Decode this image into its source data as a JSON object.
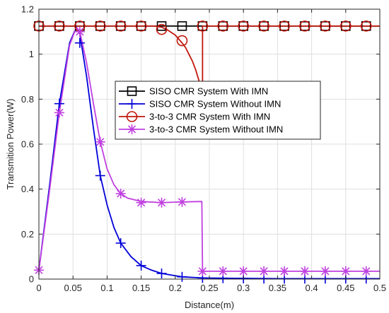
{
  "chart_data": {
    "type": "line",
    "title": "",
    "xlabel": "Distance(m)",
    "ylabel": "Transmition Power(W)",
    "xlim": [
      0,
      0.5
    ],
    "ylim": [
      0,
      1.2
    ],
    "xticks": [
      0,
      0.05,
      0.1,
      0.15,
      0.2,
      0.25,
      0.3,
      0.35,
      0.4,
      0.45,
      0.5
    ],
    "yticks": [
      0,
      0.2,
      0.4,
      0.6,
      0.8,
      1,
      1.2
    ],
    "xtick_labels": [
      "0",
      "0.05",
      "0.1",
      "0.15",
      "0.2",
      "0.25",
      "0.3",
      "0.35",
      "0.4",
      "0.45",
      "0.5"
    ],
    "ytick_labels": [
      "0",
      "0.2",
      "0.4",
      "0.6",
      "0.8",
      "1",
      "1.2"
    ],
    "grid": true,
    "legend_position": "upper-middle",
    "series": [
      {
        "name": "SISO CMR System With IMN",
        "color": "#000000",
        "marker": "square",
        "x": [
          0,
          0.25,
          0.5
        ],
        "y": [
          1.125,
          1.125,
          1.125
        ],
        "marker_x": [
          0,
          0.03,
          0.06,
          0.09,
          0.12,
          0.15,
          0.18,
          0.21,
          0.24,
          0.27,
          0.3,
          0.33,
          0.36,
          0.39,
          0.42,
          0.45,
          0.48
        ],
        "marker_y": [
          1.125,
          1.125,
          1.125,
          1.125,
          1.125,
          1.125,
          1.125,
          1.125,
          1.125,
          1.125,
          1.125,
          1.125,
          1.125,
          1.125,
          1.125,
          1.125,
          1.125
        ]
      },
      {
        "name": "SISO CMR System Without IMN",
        "color": "#0000d9",
        "marker": "plus",
        "x": [
          0,
          0.015,
          0.03,
          0.045,
          0.055,
          0.06,
          0.07,
          0.08,
          0.09,
          0.1,
          0.11,
          0.12,
          0.135,
          0.15,
          0.165,
          0.18,
          0.2,
          0.21,
          0.24,
          0.27,
          0.3,
          0.35,
          0.4,
          0.45,
          0.5
        ],
        "y": [
          0.04,
          0.4,
          0.78,
          1.05,
          1.12,
          1.09,
          0.9,
          0.67,
          0.46,
          0.33,
          0.23,
          0.16,
          0.1,
          0.06,
          0.04,
          0.025,
          0.015,
          0.01,
          0.005,
          0.004,
          0.003,
          0.002,
          0.002,
          0.002,
          0.002
        ],
        "marker_x": [
          0.03,
          0.06,
          0.09,
          0.12,
          0.15,
          0.18,
          0.21,
          0.24,
          0.27,
          0.3,
          0.33,
          0.36,
          0.39,
          0.42,
          0.45,
          0.48
        ],
        "marker_y": [
          0.78,
          1.05,
          0.46,
          0.16,
          0.06,
          0.025,
          0.01,
          0.005,
          0.004,
          0.003,
          0.002,
          0.002,
          0.002,
          0.002,
          0.002,
          0.002
        ]
      },
      {
        "name": "3-to-3 CMR System With IMN",
        "color": "#c0180c",
        "marker": "circle",
        "x": [
          0,
          0.17,
          0.18,
          0.19,
          0.2,
          0.21,
          0.215,
          0.22,
          0.225,
          0.23,
          0.233,
          0.236,
          0.238,
          0.24,
          0.24,
          0.5
        ],
        "y": [
          1.125,
          1.125,
          1.12,
          1.105,
          1.085,
          1.05,
          1.03,
          1.0,
          0.97,
          0.93,
          0.9,
          0.87,
          0.85,
          0.84,
          1.125,
          1.125
        ],
        "marker_x": [
          0,
          0.03,
          0.06,
          0.09,
          0.12,
          0.15,
          0.18,
          0.21,
          0.24,
          0.27,
          0.3,
          0.33,
          0.36,
          0.39,
          0.42,
          0.45,
          0.48
        ],
        "marker_y": [
          1.125,
          1.125,
          1.125,
          1.125,
          1.125,
          1.125,
          1.11,
          1.06,
          1.125,
          1.125,
          1.125,
          1.125,
          1.125,
          1.125,
          1.125,
          1.125,
          1.125
        ]
      },
      {
        "name": "3-to-3 CMR System Without IMN",
        "color": "#c040e0",
        "marker": "asterisk",
        "x": [
          0,
          0.015,
          0.03,
          0.045,
          0.055,
          0.06,
          0.07,
          0.08,
          0.09,
          0.1,
          0.11,
          0.12,
          0.13,
          0.15,
          0.18,
          0.21,
          0.239,
          0.24,
          0.5
        ],
        "y": [
          0.04,
          0.38,
          0.74,
          1.04,
          1.12,
          1.1,
          0.96,
          0.78,
          0.61,
          0.49,
          0.42,
          0.38,
          0.36,
          0.345,
          0.34,
          0.343,
          0.345,
          0.035,
          0.035
        ],
        "marker_x": [
          0,
          0.03,
          0.06,
          0.09,
          0.12,
          0.15,
          0.18,
          0.21,
          0.24,
          0.27,
          0.3,
          0.33,
          0.36,
          0.39,
          0.42,
          0.45,
          0.48
        ],
        "marker_y": [
          0.04,
          0.74,
          1.1,
          0.61,
          0.38,
          0.34,
          0.34,
          0.343,
          0.035,
          0.035,
          0.035,
          0.035,
          0.035,
          0.035,
          0.035,
          0.035,
          0.035
        ]
      }
    ]
  }
}
